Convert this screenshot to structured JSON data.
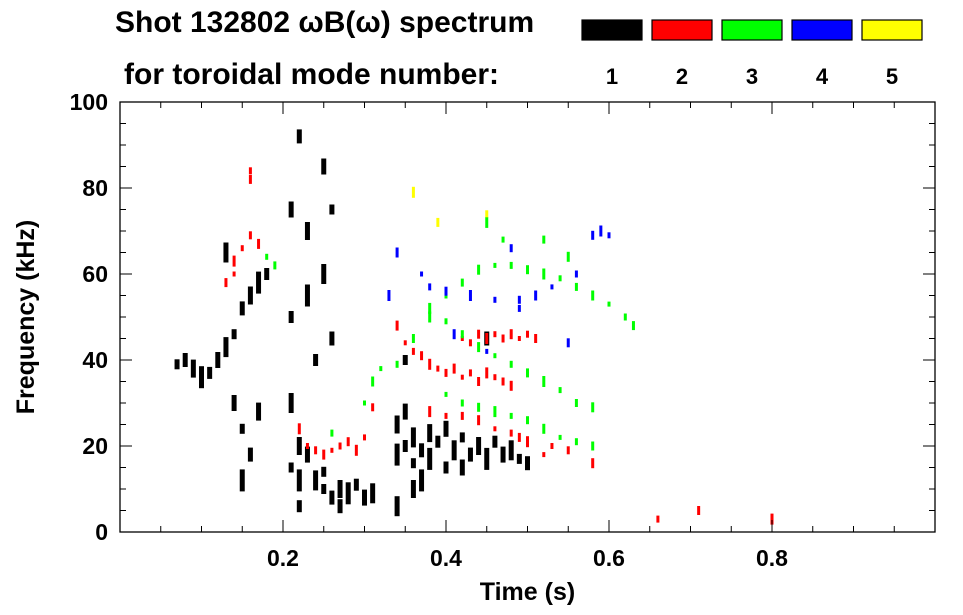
{
  "header": {
    "title": "Shot 132802 ωB(ω) spectrum",
    "subtitle": "for toroidal mode number:"
  },
  "legend": [
    {
      "label": "1",
      "color": "#000000"
    },
    {
      "label": "2",
      "color": "#ff0000"
    },
    {
      "label": "3",
      "color": "#00ff00"
    },
    {
      "label": "4",
      "color": "#0000ff"
    },
    {
      "label": "5",
      "color": "#ffff00"
    }
  ],
  "chart_data": {
    "type": "scatter",
    "title": "Shot 132802 ωB(ω) spectrum",
    "xlabel": "Time (s)",
    "ylabel": "Frequency (kHz)",
    "xlim": [
      0.0,
      1.0
    ],
    "ylim": [
      0,
      100
    ],
    "x_ticks": [
      {
        "value": 0.2,
        "label": "0.2"
      },
      {
        "value": 0.4,
        "label": "0.4"
      },
      {
        "value": 0.6,
        "label": "0.6"
      },
      {
        "value": 0.8,
        "label": "0.8"
      }
    ],
    "x_minor_step": 0.05,
    "y_ticks": [
      {
        "value": 0,
        "label": "0"
      },
      {
        "value": 20,
        "label": "20"
      },
      {
        "value": 40,
        "label": "40"
      },
      {
        "value": 60,
        "label": "60"
      },
      {
        "value": 80,
        "label": "80"
      },
      {
        "value": 100,
        "label": "100"
      }
    ],
    "y_minor_step": 5,
    "grid": false,
    "legend_position": "top-right",
    "series": [
      {
        "name": "1",
        "color": "#000000",
        "points": [
          [
            0.07,
            39
          ],
          [
            0.08,
            40
          ],
          [
            0.09,
            38
          ],
          [
            0.1,
            36
          ],
          [
            0.11,
            37
          ],
          [
            0.12,
            40
          ],
          [
            0.13,
            43
          ],
          [
            0.14,
            46
          ],
          [
            0.15,
            52
          ],
          [
            0.16,
            55
          ],
          [
            0.17,
            58
          ],
          [
            0.18,
            60
          ],
          [
            0.14,
            30
          ],
          [
            0.13,
            65
          ],
          [
            0.15,
            24
          ],
          [
            0.16,
            18
          ],
          [
            0.17,
            28
          ],
          [
            0.15,
            12
          ],
          [
            0.21,
            50
          ],
          [
            0.21,
            75
          ],
          [
            0.21,
            30
          ],
          [
            0.21,
            15
          ],
          [
            0.22,
            92
          ],
          [
            0.23,
            70
          ],
          [
            0.23,
            55
          ],
          [
            0.24,
            40
          ],
          [
            0.25,
            85
          ],
          [
            0.25,
            60
          ],
          [
            0.26,
            75
          ],
          [
            0.26,
            45
          ],
          [
            0.22,
            20
          ],
          [
            0.22,
            12
          ],
          [
            0.22,
            6
          ],
          [
            0.23,
            18
          ],
          [
            0.24,
            12
          ],
          [
            0.25,
            10
          ],
          [
            0.26,
            8
          ],
          [
            0.27,
            10
          ],
          [
            0.28,
            9
          ],
          [
            0.29,
            11
          ],
          [
            0.3,
            8
          ],
          [
            0.31,
            9
          ],
          [
            0.25,
            14
          ],
          [
            0.27,
            6
          ],
          [
            0.34,
            25
          ],
          [
            0.34,
            18
          ],
          [
            0.35,
            20
          ],
          [
            0.35,
            28
          ],
          [
            0.36,
            22
          ],
          [
            0.36,
            16
          ],
          [
            0.37,
            19
          ],
          [
            0.38,
            23
          ],
          [
            0.38,
            17
          ],
          [
            0.39,
            21
          ],
          [
            0.4,
            24
          ],
          [
            0.41,
            19
          ],
          [
            0.42,
            22
          ],
          [
            0.43,
            18
          ],
          [
            0.44,
            20
          ],
          [
            0.45,
            17
          ],
          [
            0.46,
            21
          ],
          [
            0.47,
            18
          ],
          [
            0.48,
            19
          ],
          [
            0.49,
            17
          ],
          [
            0.5,
            16
          ],
          [
            0.36,
            10
          ],
          [
            0.37,
            12
          ],
          [
            0.4,
            15
          ],
          [
            0.42,
            15
          ],
          [
            0.34,
            6
          ],
          [
            0.35,
            40
          ],
          [
            0.45,
            45
          ]
        ]
      },
      {
        "name": "2",
        "color": "#ff0000",
        "points": [
          [
            0.13,
            58
          ],
          [
            0.14,
            63
          ],
          [
            0.15,
            66
          ],
          [
            0.16,
            69
          ],
          [
            0.17,
            67
          ],
          [
            0.14,
            60
          ],
          [
            0.16,
            84
          ],
          [
            0.16,
            82
          ],
          [
            0.22,
            24
          ],
          [
            0.23,
            20
          ],
          [
            0.24,
            19
          ],
          [
            0.25,
            18
          ],
          [
            0.26,
            19
          ],
          [
            0.27,
            20
          ],
          [
            0.28,
            21
          ],
          [
            0.29,
            19
          ],
          [
            0.3,
            22
          ],
          [
            0.31,
            29
          ],
          [
            0.34,
            48
          ],
          [
            0.35,
            44
          ],
          [
            0.36,
            42
          ],
          [
            0.37,
            41
          ],
          [
            0.38,
            39
          ],
          [
            0.39,
            38
          ],
          [
            0.4,
            37
          ],
          [
            0.41,
            38
          ],
          [
            0.42,
            36
          ],
          [
            0.43,
            37
          ],
          [
            0.44,
            35
          ],
          [
            0.45,
            37
          ],
          [
            0.46,
            36
          ],
          [
            0.47,
            35
          ],
          [
            0.48,
            34
          ],
          [
            0.42,
            45
          ],
          [
            0.43,
            44
          ],
          [
            0.44,
            46
          ],
          [
            0.45,
            45
          ],
          [
            0.46,
            46
          ],
          [
            0.47,
            45
          ],
          [
            0.48,
            46
          ],
          [
            0.49,
            45
          ],
          [
            0.5,
            46
          ],
          [
            0.51,
            45
          ],
          [
            0.38,
            28
          ],
          [
            0.4,
            27
          ],
          [
            0.42,
            27
          ],
          [
            0.44,
            26
          ],
          [
            0.46,
            24
          ],
          [
            0.48,
            23
          ],
          [
            0.49,
            22
          ],
          [
            0.5,
            21
          ],
          [
            0.53,
            20
          ],
          [
            0.55,
            19
          ],
          [
            0.58,
            16
          ],
          [
            0.52,
            18
          ],
          [
            0.66,
            3
          ],
          [
            0.71,
            5
          ],
          [
            0.8,
            3
          ]
        ]
      },
      {
        "name": "3",
        "color": "#00ff00",
        "points": [
          [
            0.18,
            64
          ],
          [
            0.19,
            62
          ],
          [
            0.31,
            35
          ],
          [
            0.32,
            38
          ],
          [
            0.34,
            39
          ],
          [
            0.36,
            45
          ],
          [
            0.38,
            50
          ],
          [
            0.4,
            55
          ],
          [
            0.42,
            58
          ],
          [
            0.44,
            61
          ],
          [
            0.46,
            62
          ],
          [
            0.48,
            62
          ],
          [
            0.5,
            61
          ],
          [
            0.52,
            60
          ],
          [
            0.54,
            59
          ],
          [
            0.56,
            57
          ],
          [
            0.58,
            55
          ],
          [
            0.6,
            53
          ],
          [
            0.62,
            50
          ],
          [
            0.63,
            48
          ],
          [
            0.38,
            52
          ],
          [
            0.4,
            49
          ],
          [
            0.42,
            46
          ],
          [
            0.44,
            43
          ],
          [
            0.46,
            41
          ],
          [
            0.48,
            39
          ],
          [
            0.5,
            37
          ],
          [
            0.52,
            35
          ],
          [
            0.54,
            33
          ],
          [
            0.56,
            30
          ],
          [
            0.58,
            29
          ],
          [
            0.4,
            32
          ],
          [
            0.42,
            30
          ],
          [
            0.44,
            29
          ],
          [
            0.46,
            28
          ],
          [
            0.48,
            27
          ],
          [
            0.5,
            26
          ],
          [
            0.52,
            24
          ],
          [
            0.54,
            22
          ],
          [
            0.56,
            21
          ],
          [
            0.58,
            20
          ],
          [
            0.45,
            72
          ],
          [
            0.47,
            68
          ],
          [
            0.52,
            68
          ],
          [
            0.55,
            64
          ],
          [
            0.3,
            30
          ],
          [
            0.26,
            23
          ]
        ]
      },
      {
        "name": "4",
        "color": "#0000ff",
        "points": [
          [
            0.34,
            65
          ],
          [
            0.37,
            60
          ],
          [
            0.38,
            57
          ],
          [
            0.4,
            56
          ],
          [
            0.43,
            55
          ],
          [
            0.46,
            54
          ],
          [
            0.49,
            54
          ],
          [
            0.51,
            55
          ],
          [
            0.53,
            57
          ],
          [
            0.56,
            60
          ],
          [
            0.58,
            69
          ],
          [
            0.59,
            70
          ],
          [
            0.6,
            69
          ],
          [
            0.48,
            66
          ],
          [
            0.41,
            46
          ],
          [
            0.45,
            42
          ],
          [
            0.49,
            52
          ],
          [
            0.55,
            44
          ],
          [
            0.33,
            55
          ]
        ]
      },
      {
        "name": "5",
        "color": "#ffff00",
        "points": [
          [
            0.45,
            74
          ],
          [
            0.39,
            72
          ],
          [
            0.36,
            79
          ]
        ]
      }
    ]
  }
}
